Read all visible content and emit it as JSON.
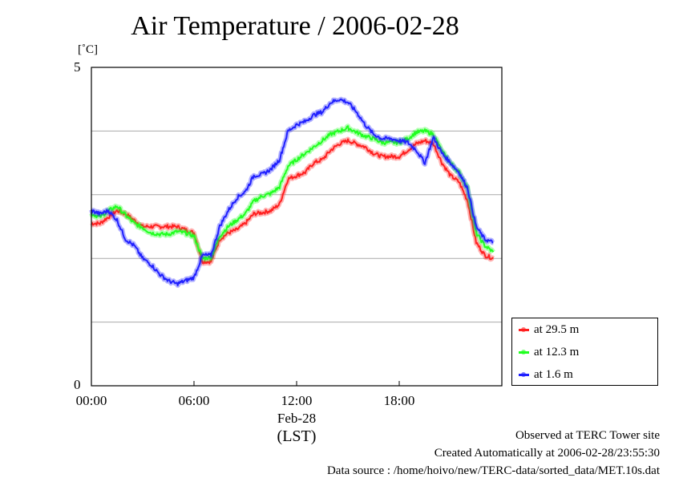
{
  "title": "Air Temperature / 2006-02-28",
  "unit_label": "[˚C]",
  "chart_data": {
    "type": "line",
    "title": "Air Temperature / 2006-02-28",
    "ylabel": "[˚C]",
    "xlabel": "(LST)",
    "date_label": "Feb-28",
    "xlim": [
      0,
      24
    ],
    "ylim": [
      0,
      5
    ],
    "x_ticks": [
      "00:00",
      "06:00",
      "12:00",
      "18:00"
    ],
    "y_ticks": [
      "0",
      "5"
    ],
    "grid": "horizontal at 1, 2, 3, 4",
    "legend_position": "bottom-right, outside plot",
    "x": [
      0,
      0.5,
      1,
      1.5,
      2,
      2.5,
      3,
      3.5,
      4,
      4.5,
      5,
      5.5,
      6,
      6.5,
      7,
      7.5,
      8,
      8.5,
      9,
      9.5,
      10,
      10.5,
      11,
      11.5,
      12,
      12.5,
      13,
      13.5,
      14,
      14.5,
      15,
      15.5,
      16,
      16.5,
      17,
      17.5,
      18,
      18.5,
      19,
      19.5,
      20,
      20.5,
      21,
      21.5,
      22,
      22.5,
      23,
      23.5
    ],
    "series": [
      {
        "name": "at 29.5 m",
        "color": "#ff2020",
        "values": [
          2.55,
          2.55,
          2.65,
          2.75,
          2.7,
          2.6,
          2.5,
          2.5,
          2.5,
          2.5,
          2.5,
          2.45,
          2.4,
          1.95,
          1.95,
          2.3,
          2.4,
          2.45,
          2.55,
          2.7,
          2.72,
          2.75,
          2.85,
          3.25,
          3.3,
          3.35,
          3.5,
          3.55,
          3.7,
          3.8,
          3.85,
          3.8,
          3.75,
          3.65,
          3.6,
          3.6,
          3.6,
          3.7,
          3.8,
          3.85,
          3.8,
          3.5,
          3.3,
          3.2,
          2.9,
          2.25,
          2.05,
          2.0
        ]
      },
      {
        "name": "at 12.3 m",
        "color": "#20ff20",
        "values": [
          2.7,
          2.65,
          2.75,
          2.82,
          2.68,
          2.55,
          2.48,
          2.4,
          2.38,
          2.38,
          2.42,
          2.4,
          2.35,
          2.0,
          2.02,
          2.35,
          2.5,
          2.6,
          2.7,
          2.9,
          2.98,
          3.02,
          3.12,
          3.45,
          3.55,
          3.65,
          3.75,
          3.85,
          3.95,
          4.0,
          4.05,
          3.98,
          3.92,
          3.88,
          3.82,
          3.82,
          3.82,
          3.88,
          3.98,
          4.0,
          3.95,
          3.68,
          3.5,
          3.35,
          3.1,
          2.4,
          2.2,
          2.1
        ]
      },
      {
        "name": "at 1.6 m",
        "color": "#2020ff",
        "values": [
          2.75,
          2.7,
          2.75,
          2.6,
          2.3,
          2.2,
          2.0,
          1.9,
          1.75,
          1.65,
          1.6,
          1.65,
          1.7,
          2.05,
          2.05,
          2.5,
          2.75,
          2.95,
          3.05,
          3.3,
          3.32,
          3.4,
          3.55,
          4.0,
          4.1,
          4.15,
          4.25,
          4.3,
          4.45,
          4.5,
          4.45,
          4.3,
          4.1,
          3.95,
          3.88,
          3.88,
          3.85,
          3.82,
          3.7,
          3.5,
          3.9,
          3.65,
          3.5,
          3.35,
          3.1,
          2.5,
          2.3,
          2.25
        ]
      }
    ]
  },
  "legend": {
    "items": [
      "at 29.5 m",
      "at 12.3 m",
      "at 1.6 m"
    ],
    "colors": [
      "#ff2020",
      "#20ff20",
      "#2020ff"
    ]
  },
  "footer": {
    "line1": "Observed at TERC Tower site",
    "line2": "Created Automatically at 2006-02-28/23:55:30",
    "line3": "Data source : /home/hoivo/new/TERC-data/sorted_data/MET.10s.dat"
  }
}
